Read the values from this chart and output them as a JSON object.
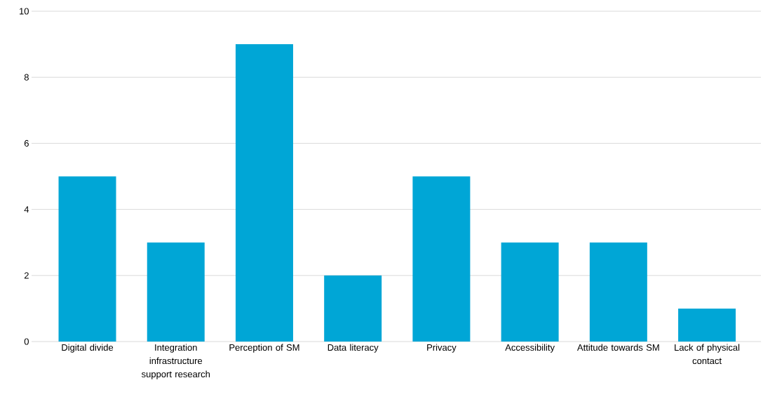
{
  "chart_data": {
    "type": "bar",
    "categories": [
      "Digital divide",
      "Integration infrastructure support research",
      "Perception of SM",
      "Data literacy",
      "Privacy",
      "Accessibility",
      "Attitude towards SM",
      "Lack of physical contact"
    ],
    "values": [
      5,
      3,
      9,
      2,
      5,
      3,
      3,
      1
    ],
    "color": "#00a6d6",
    "ylim": [
      0,
      10
    ],
    "yticks": [
      0,
      2,
      4,
      6,
      8,
      10
    ],
    "grid": "y"
  }
}
